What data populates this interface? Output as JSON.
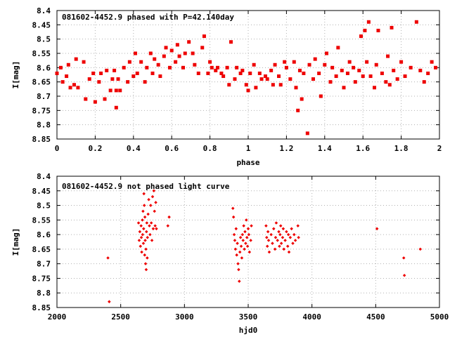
{
  "chart_data": [
    {
      "type": "scatter",
      "title": "081602-4452.9 phased with P=42.140day",
      "xlabel": "phase",
      "ylabel": "I[mag]",
      "xlim": [
        0,
        2
      ],
      "ylim": [
        8.85,
        8.4
      ],
      "y_reversed": true,
      "xticks": [
        "0",
        "0.2",
        "0.4",
        "0.6",
        "0.8",
        "1",
        "1.2",
        "1.4",
        "1.6",
        "1.8",
        "2"
      ],
      "yticks": [
        "8.4",
        "8.45",
        "8.5",
        "8.55",
        "8.6",
        "8.65",
        "8.7",
        "8.75",
        "8.8",
        "8.85"
      ],
      "grid": true,
      "marker_color": "#ee0000",
      "series": [
        {
          "values": [
            [
              0.0,
              8.62
            ],
            [
              0.02,
              8.6
            ],
            [
              0.03,
              8.65
            ],
            [
              0.05,
              8.63
            ],
            [
              0.06,
              8.59
            ],
            [
              0.07,
              8.67
            ],
            [
              0.09,
              8.66
            ],
            [
              0.1,
              8.57
            ],
            [
              0.11,
              8.67
            ],
            [
              0.14,
              8.58
            ],
            [
              0.15,
              8.71
            ],
            [
              0.17,
              8.64
            ],
            [
              0.19,
              8.62
            ],
            [
              0.2,
              8.72
            ],
            [
              0.22,
              8.65
            ],
            [
              0.23,
              8.62
            ],
            [
              0.25,
              8.71
            ],
            [
              0.26,
              8.61
            ],
            [
              0.28,
              8.68
            ],
            [
              0.29,
              8.64
            ],
            [
              0.3,
              8.61
            ],
            [
              0.31,
              8.68
            ],
            [
              0.31,
              8.74
            ],
            [
              0.32,
              8.64
            ],
            [
              0.33,
              8.68
            ],
            [
              0.35,
              8.6
            ],
            [
              0.37,
              8.65
            ],
            [
              0.38,
              8.58
            ],
            [
              0.4,
              8.63
            ],
            [
              0.41,
              8.55
            ],
            [
              0.42,
              8.62
            ],
            [
              0.44,
              8.58
            ],
            [
              0.46,
              8.65
            ],
            [
              0.47,
              8.6
            ],
            [
              0.49,
              8.55
            ],
            [
              0.5,
              8.62
            ],
            [
              0.51,
              8.57
            ],
            [
              0.53,
              8.59
            ],
            [
              0.54,
              8.63
            ],
            [
              0.56,
              8.56
            ],
            [
              0.57,
              8.53
            ],
            [
              0.59,
              8.6
            ],
            [
              0.6,
              8.54
            ],
            [
              0.62,
              8.58
            ],
            [
              0.63,
              8.52
            ],
            [
              0.64,
              8.56
            ],
            [
              0.66,
              8.6
            ],
            [
              0.67,
              8.55
            ],
            [
              0.69,
              8.51
            ],
            [
              0.71,
              8.55
            ],
            [
              0.72,
              8.59
            ],
            [
              0.74,
              8.62
            ],
            [
              0.76,
              8.53
            ],
            [
              0.77,
              8.49
            ],
            [
              0.79,
              8.62
            ],
            [
              0.8,
              8.58
            ],
            [
              0.81,
              8.6
            ],
            [
              0.83,
              8.61
            ],
            [
              0.84,
              8.6
            ],
            [
              0.86,
              8.62
            ],
            [
              0.87,
              8.63
            ],
            [
              0.89,
              8.6
            ],
            [
              0.9,
              8.66
            ],
            [
              0.91,
              8.51
            ],
            [
              0.93,
              8.64
            ],
            [
              0.94,
              8.6
            ],
            [
              0.96,
              8.62
            ],
            [
              0.97,
              8.61
            ],
            [
              0.99,
              8.66
            ],
            [
              1.0,
              8.68
            ],
            [
              1.01,
              8.62
            ],
            [
              1.03,
              8.59
            ],
            [
              1.04,
              8.67
            ],
            [
              1.06,
              8.62
            ],
            [
              1.07,
              8.64
            ],
            [
              1.09,
              8.63
            ],
            [
              1.1,
              8.64
            ],
            [
              1.12,
              8.61
            ],
            [
              1.13,
              8.66
            ],
            [
              1.14,
              8.59
            ],
            [
              1.16,
              8.63
            ],
            [
              1.17,
              8.66
            ],
            [
              1.19,
              8.58
            ],
            [
              1.2,
              8.6
            ],
            [
              1.22,
              8.64
            ],
            [
              1.24,
              8.58
            ],
            [
              1.25,
              8.67
            ],
            [
              1.26,
              8.75
            ],
            [
              1.27,
              8.61
            ],
            [
              1.28,
              8.71
            ],
            [
              1.29,
              8.62
            ],
            [
              1.31,
              8.83
            ],
            [
              1.32,
              8.59
            ],
            [
              1.34,
              8.64
            ],
            [
              1.35,
              8.57
            ],
            [
              1.37,
              8.62
            ],
            [
              1.38,
              8.7
            ],
            [
              1.4,
              8.59
            ],
            [
              1.41,
              8.55
            ],
            [
              1.43,
              8.65
            ],
            [
              1.44,
              8.6
            ],
            [
              1.46,
              8.63
            ],
            [
              1.47,
              8.53
            ],
            [
              1.49,
              8.61
            ],
            [
              1.5,
              8.67
            ],
            [
              1.52,
              8.62
            ],
            [
              1.53,
              8.58
            ],
            [
              1.55,
              8.6
            ],
            [
              1.56,
              8.65
            ],
            [
              1.58,
              8.61
            ],
            [
              1.59,
              8.49
            ],
            [
              1.6,
              8.63
            ],
            [
              1.61,
              8.47
            ],
            [
              1.62,
              8.58
            ],
            [
              1.63,
              8.44
            ],
            [
              1.64,
              8.63
            ],
            [
              1.66,
              8.67
            ],
            [
              1.67,
              8.59
            ],
            [
              1.68,
              8.47
            ],
            [
              1.7,
              8.62
            ],
            [
              1.72,
              8.65
            ],
            [
              1.73,
              8.56
            ],
            [
              1.74,
              8.66
            ],
            [
              1.75,
              8.46
            ],
            [
              1.76,
              8.61
            ],
            [
              1.78,
              8.64
            ],
            [
              1.8,
              8.58
            ],
            [
              1.82,
              8.63
            ],
            [
              1.85,
              8.6
            ],
            [
              1.88,
              8.44
            ],
            [
              1.9,
              8.61
            ],
            [
              1.92,
              8.65
            ],
            [
              1.94,
              8.62
            ],
            [
              1.96,
              8.58
            ],
            [
              1.98,
              8.6
            ]
          ]
        }
      ]
    },
    {
      "type": "scatter",
      "title": "081602-4452.9 not phased light curve",
      "xlabel": "hjd0",
      "ylabel": "I[mag]",
      "xlim": [
        2000,
        5000
      ],
      "ylim": [
        8.85,
        8.4
      ],
      "y_reversed": true,
      "xticks": [
        "2000",
        "2500",
        "3000",
        "3500",
        "4000",
        "4500",
        "5000"
      ],
      "yticks": [
        "8.4",
        "8.45",
        "8.5",
        "8.55",
        "8.6",
        "8.65",
        "8.7",
        "8.75",
        "8.8",
        "8.85"
      ],
      "grid": true,
      "marker_color": "#ee0000",
      "series": [
        {
          "values": [
            [
              2400,
              8.68
            ],
            [
              2410,
              8.83
            ],
            [
              2640,
              8.56
            ],
            [
              2645,
              8.62
            ],
            [
              2650,
              8.59
            ],
            [
              2655,
              8.64
            ],
            [
              2660,
              8.57
            ],
            [
              2662,
              8.61
            ],
            [
              2665,
              8.66
            ],
            [
              2670,
              8.55
            ],
            [
              2672,
              8.6
            ],
            [
              2675,
              8.52
            ],
            [
              2678,
              8.63
            ],
            [
              2680,
              8.58
            ],
            [
              2682,
              8.46
            ],
            [
              2685,
              8.5
            ],
            [
              2688,
              8.67
            ],
            [
              2690,
              8.54
            ],
            [
              2692,
              8.62
            ],
            [
              2695,
              8.7
            ],
            [
              2698,
              8.65
            ],
            [
              2700,
              8.72
            ],
            [
              2702,
              8.59
            ],
            [
              2705,
              8.56
            ],
            [
              2708,
              8.68
            ],
            [
              2710,
              8.61
            ],
            [
              2715,
              8.53
            ],
            [
              2720,
              8.48
            ],
            [
              2725,
              8.57
            ],
            [
              2730,
              8.6
            ],
            [
              2735,
              8.5
            ],
            [
              2740,
              8.56
            ],
            [
              2745,
              8.62
            ],
            [
              2750,
              8.47
            ],
            [
              2755,
              8.58
            ],
            [
              2760,
              8.45
            ],
            [
              2765,
              8.52
            ],
            [
              2770,
              8.57
            ],
            [
              2775,
              8.49
            ],
            [
              2780,
              8.58
            ],
            [
              2870,
              8.57
            ],
            [
              2880,
              8.54
            ],
            [
              3380,
              8.51
            ],
            [
              3385,
              8.54
            ],
            [
              3390,
              8.6
            ],
            [
              3395,
              8.62
            ],
            [
              3400,
              8.65
            ],
            [
              3405,
              8.58
            ],
            [
              3410,
              8.67
            ],
            [
              3415,
              8.63
            ],
            [
              3420,
              8.7
            ],
            [
              3425,
              8.72
            ],
            [
              3430,
              8.76
            ],
            [
              3435,
              8.66
            ],
            [
              3440,
              8.61
            ],
            [
              3445,
              8.64
            ],
            [
              3450,
              8.68
            ],
            [
              3455,
              8.6
            ],
            [
              3460,
              8.62
            ],
            [
              3465,
              8.57
            ],
            [
              3470,
              8.65
            ],
            [
              3475,
              8.59
            ],
            [
              3480,
              8.63
            ],
            [
              3485,
              8.55
            ],
            [
              3490,
              8.61
            ],
            [
              3495,
              8.64
            ],
            [
              3500,
              8.58
            ],
            [
              3505,
              8.6
            ],
            [
              3510,
              8.66
            ],
            [
              3520,
              8.62
            ],
            [
              3525,
              8.57
            ],
            [
              3640,
              8.57
            ],
            [
              3645,
              8.61
            ],
            [
              3650,
              8.64
            ],
            [
              3655,
              8.59
            ],
            [
              3660,
              8.62
            ],
            [
              3665,
              8.66
            ],
            [
              3680,
              8.6
            ],
            [
              3690,
              8.63
            ],
            [
              3700,
              8.58
            ],
            [
              3710,
              8.65
            ],
            [
              3715,
              8.61
            ],
            [
              3720,
              8.56
            ],
            [
              3730,
              8.62
            ],
            [
              3740,
              8.59
            ],
            [
              3745,
              8.64
            ],
            [
              3750,
              8.6
            ],
            [
              3755,
              8.57
            ],
            [
              3760,
              8.63
            ],
            [
              3770,
              8.61
            ],
            [
              3775,
              8.58
            ],
            [
              3780,
              8.65
            ],
            [
              3790,
              8.62
            ],
            [
              3800,
              8.59
            ],
            [
              3810,
              8.64
            ],
            [
              3815,
              8.6
            ],
            [
              3820,
              8.66
            ],
            [
              3830,
              8.61
            ],
            [
              3840,
              8.58
            ],
            [
              3850,
              8.63
            ],
            [
              3860,
              8.6
            ],
            [
              3870,
              8.62
            ],
            [
              3890,
              8.57
            ],
            [
              3895,
              8.61
            ],
            [
              4510,
              8.58
            ],
            [
              4720,
              8.68
            ],
            [
              4725,
              8.74
            ],
            [
              4850,
              8.65
            ]
          ]
        }
      ]
    }
  ]
}
